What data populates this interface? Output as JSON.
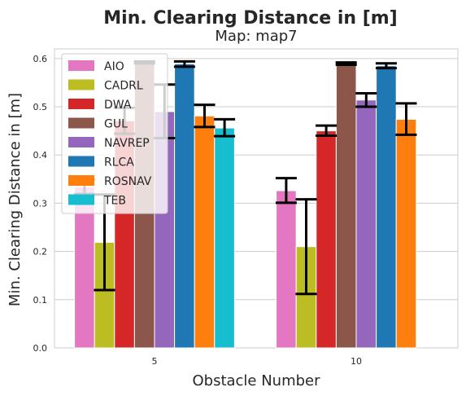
{
  "chart_data": {
    "type": "bar",
    "title": "Min. Clearing Distance in [m]",
    "subtitle": "Map: map7",
    "xlabel": "Obstacle Number",
    "ylabel": "Min. Clearing Distance in [m]",
    "categories": [
      "5",
      "10"
    ],
    "ylim": [
      0,
      0.62
    ],
    "yticks": [
      "0.0",
      "0.1",
      "0.2",
      "0.3",
      "0.4",
      "0.5",
      "0.6"
    ],
    "grid": true,
    "legend_position": "top-left",
    "series": [
      {
        "name": "AIO",
        "color": "#e377c2",
        "values": [
          0.334,
          0.326
        ],
        "err_low": [
          0.319,
          0.301
        ],
        "err_high": [
          0.349,
          0.352
        ]
      },
      {
        "name": "CADRL",
        "color": "#bcbd22",
        "values": [
          0.219,
          0.21
        ],
        "err_low": [
          0.12,
          0.112
        ],
        "err_high": [
          0.318,
          0.308
        ]
      },
      {
        "name": "DWA",
        "color": "#d62728",
        "values": [
          0.471,
          0.45
        ],
        "err_low": [
          0.444,
          0.44
        ],
        "err_high": [
          0.498,
          0.461
        ]
      },
      {
        "name": "GUL",
        "color": "#8c564b",
        "values": [
          0.592,
          0.59
        ],
        "err_low": [
          0.59,
          0.587
        ],
        "err_high": [
          0.594,
          0.592
        ]
      },
      {
        "name": "NAVREP",
        "color": "#9467bd",
        "values": [
          0.49,
          0.514
        ],
        "err_low": [
          0.435,
          0.5
        ],
        "err_high": [
          0.546,
          0.528
        ]
      },
      {
        "name": "RLCA",
        "color": "#1f77b4",
        "values": [
          0.589,
          0.585
        ],
        "err_low": [
          0.583,
          0.58
        ],
        "err_high": [
          0.594,
          0.59
        ]
      },
      {
        "name": "ROSNAV",
        "color": "#ff7f0e",
        "values": [
          0.481,
          0.474
        ],
        "err_low": [
          0.458,
          0.442
        ],
        "err_high": [
          0.504,
          0.507
        ]
      },
      {
        "name": "TEB",
        "color": "#17becf",
        "values": [
          0.456,
          null
        ],
        "err_low": [
          0.439,
          null
        ],
        "err_high": [
          0.474,
          null
        ]
      }
    ]
  }
}
